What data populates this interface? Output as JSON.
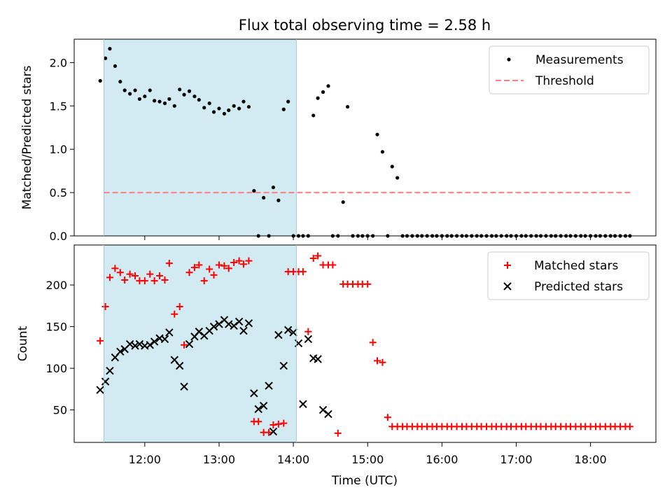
{
  "chart_data": {
    "type": "scatter",
    "title": "Flux total observing time = 2.58 h",
    "xlabel": "Time (UTC)",
    "x_ticks": [
      "12:00",
      "13:00",
      "14:00",
      "15:00",
      "16:00",
      "17:00",
      "18:00"
    ],
    "x_tick_hours": [
      12,
      13,
      14,
      15,
      16,
      17,
      18
    ],
    "xlim_hours": [
      11.05,
      18.88
    ],
    "shaded_interval_hours": [
      11.45,
      14.04
    ],
    "shade_color": "#add8e6",
    "panels": [
      {
        "id": "ratio",
        "ylabel": "Matched/Predicted stars",
        "ylim": [
          0,
          2.27
        ],
        "y_ticks": [
          "0.0",
          "0.5",
          "1.0",
          "1.5",
          "2.0"
        ],
        "y_tick_values": [
          0,
          0.5,
          1.0,
          1.5,
          2.0
        ],
        "legend_position": "top-right",
        "series": [
          {
            "name": "Measurements",
            "marker": "dot",
            "color": "#000000",
            "x": [
              11.4,
              11.47,
              11.53,
              11.6,
              11.67,
              11.73,
              11.8,
              11.87,
              11.93,
              12.0,
              12.07,
              12.13,
              12.2,
              12.27,
              12.33,
              12.4,
              12.47,
              12.53,
              12.6,
              12.67,
              12.73,
              12.8,
              12.87,
              12.93,
              13.0,
              13.07,
              13.13,
              13.2,
              13.27,
              13.33,
              13.4,
              13.47,
              13.53,
              13.6,
              13.67,
              13.73,
              13.8,
              13.87,
              13.93,
              14.0,
              14.07,
              14.13,
              14.2,
              14.27,
              14.33,
              14.4,
              14.47,
              14.53,
              14.6,
              14.67,
              14.73,
              14.8,
              14.87,
              14.93,
              15.0,
              15.07,
              15.13,
              15.2,
              15.27,
              15.33,
              15.4,
              15.47,
              15.53,
              15.6,
              15.67,
              15.73,
              15.8,
              15.87,
              15.93,
              16.0,
              16.07,
              16.13,
              16.2,
              16.27,
              16.33,
              16.4,
              16.47,
              16.53,
              16.6,
              16.67,
              16.73,
              16.8,
              16.87,
              16.93,
              17.0,
              17.07,
              17.13,
              17.2,
              17.27,
              17.33,
              17.4,
              17.47,
              17.53,
              17.6,
              17.67,
              17.73,
              17.8,
              17.87,
              17.93,
              18.0,
              18.07,
              18.13,
              18.2,
              18.27,
              18.33,
              18.4,
              18.47,
              18.53
            ],
            "y": [
              1.79,
              2.05,
              2.16,
              1.96,
              1.78,
              1.68,
              1.64,
              1.68,
              1.58,
              1.61,
              1.68,
              1.56,
              1.55,
              1.53,
              1.58,
              1.5,
              1.69,
              1.63,
              1.67,
              1.61,
              1.57,
              1.48,
              1.53,
              1.43,
              1.47,
              1.41,
              1.45,
              1.5,
              1.47,
              1.55,
              1.49,
              0.52,
              0.0,
              0.44,
              0.0,
              0.56,
              0.41,
              1.46,
              1.55,
              0.0,
              0.0,
              0.0,
              0.0,
              1.39,
              1.59,
              1.66,
              1.73,
              0.0,
              0.0,
              0.39,
              1.49,
              0.0,
              0.0,
              0.0,
              0.0,
              0.0,
              1.17,
              0.97,
              0.0,
              0.8,
              0.67,
              0.0,
              0.0,
              0.0,
              0.0,
              0.0,
              0.0,
              0.0,
              0.0,
              0.0,
              0.0,
              0.0,
              0.0,
              0.0,
              0.0,
              0.0,
              0.0,
              0.0,
              0.0,
              0.0,
              0.0,
              0.0,
              0.0,
              0.0,
              0.0,
              0.0,
              0.0,
              0.0,
              0.0,
              0.0,
              0.0,
              0.0,
              0.0,
              0.0,
              0.0,
              0.0,
              0.0,
              0.0,
              0.0,
              0.0,
              0.0,
              0.0,
              0.0,
              0.0,
              0.0,
              0.0,
              0.0,
              0.0
            ]
          },
          {
            "name": "Threshold",
            "marker": "dashed-line",
            "color": "#ff7f7f",
            "x": [
              11.45,
              18.55
            ],
            "y": [
              0.5,
              0.5
            ]
          }
        ]
      },
      {
        "id": "counts",
        "ylabel": "Count",
        "ylim": [
          11,
          248
        ],
        "y_ticks": [
          "50",
          "100",
          "150",
          "200"
        ],
        "y_tick_values": [
          50,
          100,
          150,
          200
        ],
        "legend_position": "top-right",
        "series": [
          {
            "name": "Matched stars",
            "marker": "plus",
            "color": "#ff0000",
            "x": [
              11.4,
              11.47,
              11.53,
              11.6,
              11.67,
              11.73,
              11.8,
              11.87,
              11.93,
              12.0,
              12.07,
              12.13,
              12.2,
              12.27,
              12.33,
              12.4,
              12.47,
              12.53,
              12.6,
              12.67,
              12.73,
              12.8,
              12.87,
              12.93,
              13.0,
              13.07,
              13.13,
              13.2,
              13.27,
              13.33,
              13.4,
              13.47,
              13.53,
              13.6,
              13.67,
              13.73,
              13.8,
              13.87,
              13.93,
              14.0,
              14.07,
              14.13,
              14.2,
              14.27,
              14.33,
              14.4,
              14.47,
              14.53,
              14.6,
              14.67,
              14.73,
              14.8,
              14.87,
              14.93,
              15.0,
              15.07,
              15.13,
              15.2,
              15.27,
              15.33,
              15.4,
              15.47,
              15.53,
              15.6,
              15.67,
              15.73,
              15.8,
              15.87,
              15.93,
              16.0,
              16.07,
              16.13,
              16.2,
              16.27,
              16.33,
              16.4,
              16.47,
              16.53,
              16.6,
              16.67,
              16.73,
              16.8,
              16.87,
              16.93,
              17.0,
              17.07,
              17.13,
              17.2,
              17.27,
              17.33,
              17.4,
              17.47,
              17.53,
              17.6,
              17.67,
              17.73,
              17.8,
              17.87,
              17.93,
              18.0,
              18.07,
              18.13,
              18.2,
              18.27,
              18.33,
              18.4,
              18.47,
              18.53
            ],
            "y": [
              133,
              174,
              209,
              220,
              215,
              206,
              213,
              211,
              205,
              205,
              213,
              205,
              211,
              206,
              226,
              165,
              174,
              128,
              215,
              221,
              224,
              205,
              219,
              212,
              224,
              223,
              220,
              227,
              229,
              225,
              229,
              36,
              36,
              23,
              23,
              32,
              33,
              34,
              216,
              216,
              216,
              216,
              144,
              232,
              235,
              224,
              224,
              224,
              22,
              201,
              201,
              201,
              201,
              201,
              201,
              131,
              109,
              107,
              41,
              30,
              30,
              30,
              30,
              30,
              30,
              30,
              30,
              30,
              30,
              30,
              30,
              30,
              30,
              30,
              30,
              30,
              30,
              30,
              30,
              30,
              30,
              30,
              30,
              30,
              30,
              30,
              30,
              30,
              30,
              30,
              30,
              30,
              30,
              30,
              30,
              30,
              30,
              30,
              30,
              30,
              30,
              30,
              30,
              30,
              30,
              30,
              30,
              30
            ]
          },
          {
            "name": "Predicted stars",
            "marker": "cross",
            "color": "#000000",
            "x": [
              11.4,
              11.47,
              11.53,
              11.6,
              11.67,
              11.73,
              11.8,
              11.87,
              11.93,
              12.0,
              12.07,
              12.13,
              12.2,
              12.27,
              12.33,
              12.4,
              12.47,
              12.53,
              12.6,
              12.67,
              12.73,
              12.8,
              12.87,
              12.93,
              13.0,
              13.07,
              13.13,
              13.2,
              13.27,
              13.33,
              13.4,
              13.47,
              13.53,
              13.6,
              13.67,
              13.73,
              13.8,
              13.87,
              13.93,
              14.0,
              14.07,
              14.13,
              14.2,
              14.27,
              14.33,
              14.4,
              14.47
            ],
            "y": [
              74,
              84,
              97,
              113,
              120,
              123,
              129,
              127,
              129,
              127,
              128,
              132,
              136,
              135,
              143,
              110,
              103,
              78,
              129,
              138,
              144,
              139,
              145,
              150,
              153,
              158,
              153,
              151,
              156,
              145,
              154,
              70,
              51,
              55,
              79,
              24,
              140,
              103,
              146,
              143,
              130,
              57,
              135,
              112,
              111,
              50,
              45
            ]
          }
        ]
      }
    ]
  }
}
